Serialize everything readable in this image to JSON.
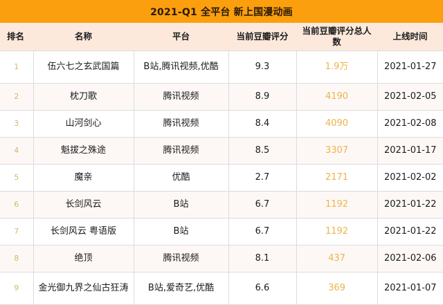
{
  "title": "2021-Q1 全平台 新上国漫动画",
  "colors": {
    "title_bar": "#fb9f0e",
    "header_row": "#fce9dc",
    "rank_text": "#d8b46a",
    "count_text": "#ecb448",
    "grid_line": "#dcdcdc"
  },
  "table": {
    "headers": [
      "排名",
      "名称",
      "平台",
      "当前豆瓣评分",
      "当前豆瓣评分总人数",
      "上线时间"
    ],
    "rows": [
      {
        "rank": "1",
        "name": "伍六七之玄武国篇",
        "platform": "B站,腾讯视频,优酷",
        "score": "9.3",
        "count": "1.9万",
        "date": "2021-01-27"
      },
      {
        "rank": "2",
        "name": "枕刀歌",
        "platform": "腾讯视频",
        "score": "8.9",
        "count": "4190",
        "date": "2021-02-05"
      },
      {
        "rank": "3",
        "name": "山河剑心",
        "platform": "腾讯视频",
        "score": "8.4",
        "count": "4090",
        "date": "2021-02-08"
      },
      {
        "rank": "4",
        "name": "魁拔之殊途",
        "platform": "腾讯视频",
        "score": "8.5",
        "count": "3307",
        "date": "2021-01-17"
      },
      {
        "rank": "5",
        "name": "魔亲",
        "platform": "优酷",
        "score": "2.7",
        "count": "2171",
        "date": "2021-02-02"
      },
      {
        "rank": "6",
        "name": "长剑风云",
        "platform": "B站",
        "score": "6.7",
        "count": "1192",
        "date": "2021-01-22"
      },
      {
        "rank": "7",
        "name": "长剑风云 粤语版",
        "platform": "B站",
        "score": "6.7",
        "count": "1192",
        "date": "2021-01-22"
      },
      {
        "rank": "8",
        "name": "绝顶",
        "platform": "腾讯视频",
        "score": "8.1",
        "count": "437",
        "date": "2021-02-06"
      },
      {
        "rank": "9",
        "name": "金光御九界之仙古狂涛",
        "platform": "B站,爱奇艺,优酷",
        "score": "6.6",
        "count": "369",
        "date": "2021-01-07"
      }
    ]
  }
}
